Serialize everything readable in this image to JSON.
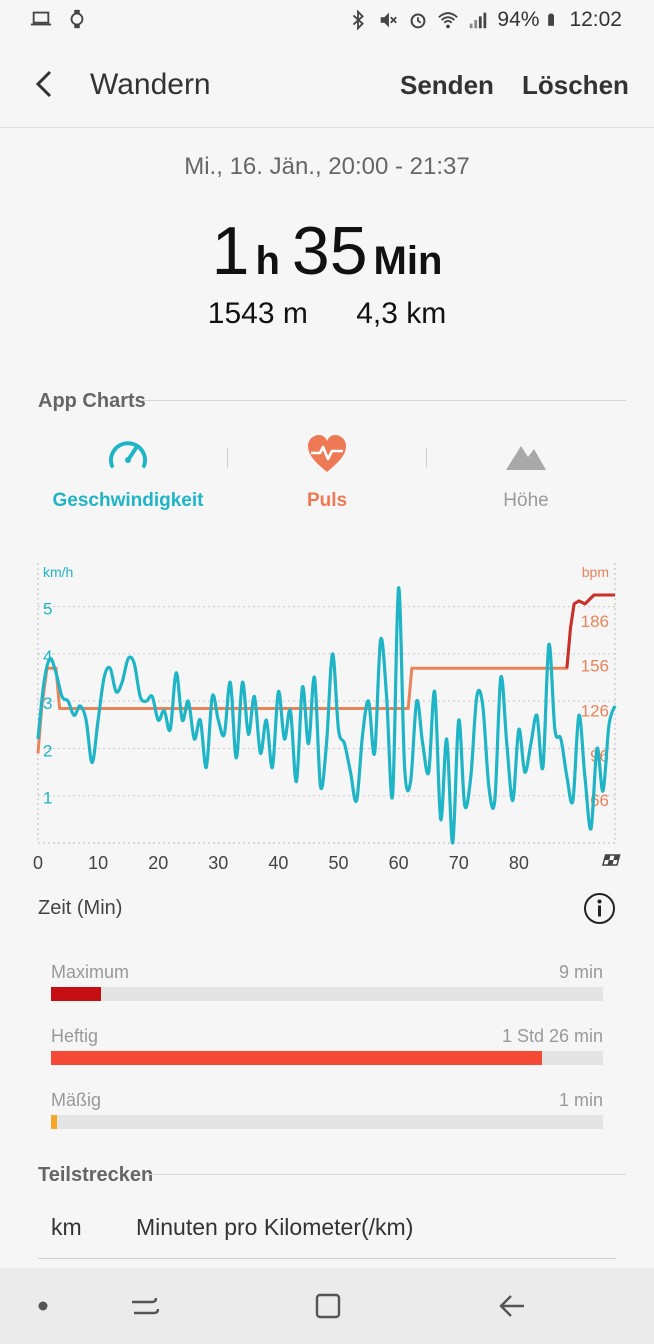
{
  "status_bar": {
    "battery": "94%",
    "time": "12:02"
  },
  "header": {
    "title": "Wandern",
    "send_label": "Senden",
    "delete_label": "Löschen"
  },
  "summary": {
    "date_range": "Mi., 16. Jän., 20:00 - 21:37",
    "duration_hours": "1",
    "duration_hours_unit": "h",
    "duration_minutes": "35",
    "duration_minutes_unit": "Min",
    "elevation": "1543 m",
    "distance": "4,3 km"
  },
  "app_charts": {
    "section_label": "App Charts",
    "tabs": [
      {
        "label": "Geschwindigkeit",
        "icon": "speedometer-icon",
        "color": "#1fb5c6"
      },
      {
        "label": "Puls",
        "icon": "heart-pulse-icon",
        "color": "#ee7a55"
      },
      {
        "label": "Höhe",
        "icon": "mountain-icon",
        "color": "#9a9a9a"
      }
    ]
  },
  "chart_data": {
    "type": "line",
    "x_label": "Zeit (Min)",
    "x_ticks": [
      "0",
      "10",
      "20",
      "30",
      "40",
      "50",
      "60",
      "70",
      "80"
    ],
    "xlim": [
      0,
      96
    ],
    "left_axis": {
      "unit": "km/h",
      "ticks": [
        "1",
        "2",
        "3",
        "4",
        "5"
      ],
      "range": [
        0,
        5.5
      ],
      "color": "#1fb5c6"
    },
    "right_axis": {
      "unit": "bpm",
      "ticks": [
        "66",
        "96",
        "126",
        "156",
        "186"
      ],
      "range": [
        36,
        210
      ],
      "color": "#e8845a"
    },
    "series": [
      {
        "axis": "left",
        "color": "#1fb5c6",
        "x": [
          0,
          1,
          2,
          3,
          4,
          5,
          6,
          7,
          8,
          9,
          10,
          11,
          12,
          13,
          14,
          15,
          16,
          17,
          18,
          19,
          20,
          21,
          22,
          23,
          24,
          25,
          26,
          27,
          28,
          29,
          30,
          31,
          32,
          33,
          34,
          35,
          36,
          37,
          38,
          39,
          40,
          41,
          42,
          43,
          44,
          45,
          46,
          47,
          48,
          49,
          50,
          51,
          52,
          53,
          54,
          55,
          56,
          57,
          58,
          59,
          60,
          61,
          62,
          63,
          64,
          65,
          66,
          67,
          68,
          69,
          70,
          71,
          72,
          73,
          74,
          75,
          76,
          77,
          78,
          79,
          80,
          81,
          82,
          83,
          84,
          85,
          86,
          87,
          88,
          89,
          90,
          91,
          92,
          93,
          94,
          95,
          96
        ],
        "values": [
          2.2,
          3.4,
          3.9,
          3.6,
          3.1,
          3.0,
          2.7,
          2.9,
          2.6,
          1.7,
          2.6,
          3.5,
          3.7,
          3.2,
          3.4,
          3.9,
          3.8,
          3.1,
          3.0,
          3.1,
          2.6,
          2.8,
          2.4,
          3.6,
          2.6,
          3.0,
          2.2,
          2.6,
          1.6,
          3.1,
          2.6,
          2.3,
          3.4,
          1.8,
          3.4,
          2.3,
          3.1,
          1.9,
          2.6,
          1.6,
          3.2,
          2.2,
          2.8,
          1.3,
          3.3,
          2.1,
          3.5,
          1.2,
          2.1,
          4.0,
          2.4,
          2.1,
          1.5,
          0.9,
          2.3,
          3.0,
          1.9,
          4.3,
          3.1,
          1.0,
          5.4,
          1.6,
          1.3,
          3.0,
          2.1,
          1.5,
          3.2,
          0.5,
          2.2,
          0.0,
          2.6,
          0.8,
          1.4,
          3.1,
          2.9,
          1.2,
          0.9,
          3.5,
          2.1,
          0.9,
          2.4,
          1.5,
          2.1,
          2.7,
          1.6,
          4.2,
          2.4,
          2.2,
          1.4,
          0.9,
          2.7,
          1.4,
          0.3,
          2.0,
          1.1,
          2.5,
          2.9
        ]
      },
      {
        "axis": "right",
        "color": "#e8845a",
        "highlight_color": "#c9302c",
        "x": [
          0,
          0.6,
          1.5,
          3.0,
          3.6,
          60.8,
          61.6,
          62.2,
          88.0,
          88.6,
          89.2,
          90.0,
          91.0,
          92.5,
          93.4,
          96
        ],
        "values": [
          96,
          126,
          153,
          153,
          126,
          126,
          126,
          153,
          153,
          180,
          196,
          198,
          196,
          202,
          202,
          202
        ]
      }
    ]
  },
  "info_icon": "info-circle-icon",
  "heart_rate_zones": [
    {
      "label": "Maximum",
      "value": "9 min",
      "fraction": 0.09,
      "color": "#c60f13"
    },
    {
      "label": "Heftig",
      "value": "1 Std 26 min",
      "fraction": 0.89,
      "color": "#f54a36"
    },
    {
      "label": "Mäßig",
      "value": "1 min",
      "fraction": 0.01,
      "color": "#f5a623"
    }
  ],
  "splits": {
    "section_label": "Teilstrecken",
    "col_km": "km",
    "col_pace": "Minuten pro Kilometer(/km)"
  },
  "nav_bar": {
    "icons": [
      "dot-icon",
      "recent-apps-icon",
      "home-icon",
      "back-icon"
    ]
  }
}
